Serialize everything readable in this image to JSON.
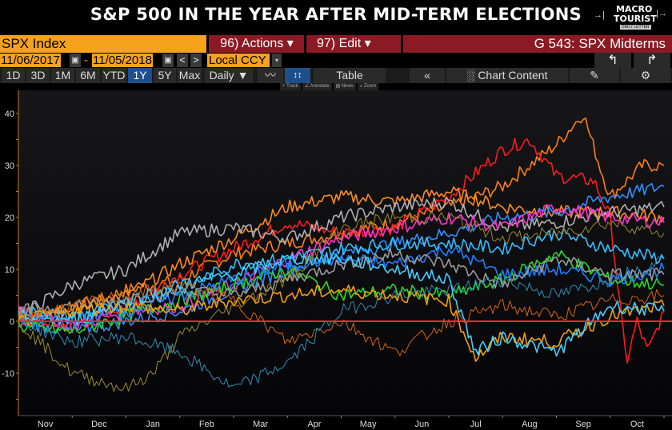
{
  "header": {
    "title": "S&P 500 IN THE YEAR AFTER MID-TERM ELECTIONS",
    "logo": {
      "line1": "MACRO",
      "line2": "TOURIST",
      "line3": "DAILY LETTER"
    }
  },
  "toolbar": {
    "security": "SPX Index",
    "actions_label": "96) Actions ▾",
    "edit_label": "97) Edit ▾",
    "graph_title": "G 543: SPX Midterms",
    "start_date": "11/06/2017",
    "end_date": "11/05/2018",
    "date_separator": "-",
    "currency": "Local CCY",
    "undo_icon": "↰",
    "redo_icon": "↱",
    "calendar_icon": "▣",
    "prev_icon": "<",
    "next_icon": ">",
    "dropdown_icon": "▾",
    "periods": [
      "1D",
      "3D",
      "1M",
      "6M",
      "YTD",
      "1Y",
      "5Y",
      "Max"
    ],
    "active_period": "1Y",
    "frequency": "Daily ▼",
    "line_chart_icon": "〰",
    "compare_icon": "↕↕",
    "table_label": "Table",
    "collapse_icon": "«",
    "chart_content_label": "Chart Content",
    "chart_content_icon": "░",
    "edit_icon": "✎",
    "settings_icon": "⚙",
    "sub_tools": [
      "+ Track",
      "∠ Annotate",
      "▤ News",
      "⌕ Zoom"
    ]
  },
  "chart_data": {
    "type": "line",
    "title": "S&P 500 IN THE YEAR AFTER MID-TERM ELECTIONS",
    "xlabel": "",
    "ylabel": "",
    "x_ticks": [
      "Nov",
      "Dec",
      "Jan",
      "Feb",
      "Mar",
      "Apr",
      "May",
      "Jun",
      "Jul",
      "Aug",
      "Sep",
      "Oct"
    ],
    "y_ticks": [
      -10,
      0,
      10,
      20,
      30,
      40
    ],
    "ylim": [
      -17,
      45
    ],
    "grid": false,
    "legend": "none",
    "reference_line": {
      "y": 0,
      "color": "#ff2a3a"
    },
    "x_unit": "months since election (0 = Nov)",
    "series": [
      {
        "name": "series-orange-peak",
        "color": "#ff7f0e",
        "points": [
          [
            0,
            0
          ],
          [
            1,
            2
          ],
          [
            2,
            6
          ],
          [
            3,
            8
          ],
          [
            4,
            13
          ],
          [
            5,
            15
          ],
          [
            6,
            17
          ],
          [
            7,
            19
          ],
          [
            8,
            22
          ],
          [
            9,
            26
          ],
          [
            10,
            34
          ],
          [
            10.5,
            40
          ],
          [
            10.8,
            30
          ],
          [
            11,
            24
          ],
          [
            11.6,
            30
          ],
          [
            12,
            30
          ]
        ]
      },
      {
        "name": "series-red",
        "color": "#ff1a1a",
        "points": [
          [
            0,
            0
          ],
          [
            1,
            -1
          ],
          [
            2,
            3
          ],
          [
            3,
            9
          ],
          [
            4,
            14
          ],
          [
            5,
            19
          ],
          [
            6,
            17
          ],
          [
            7,
            18
          ],
          [
            8,
            24
          ],
          [
            9,
            33
          ],
          [
            9.5,
            35
          ],
          [
            10,
            28
          ],
          [
            10.7,
            27
          ],
          [
            11,
            20
          ],
          [
            11.3,
            -8
          ],
          [
            11.5,
            0
          ],
          [
            11.7,
            -6
          ],
          [
            12,
            2
          ]
        ]
      },
      {
        "name": "series-orange-2",
        "color": "#ff8c1a",
        "points": [
          [
            0,
            1
          ],
          [
            1,
            3
          ],
          [
            2,
            5
          ],
          [
            3,
            11
          ],
          [
            4,
            16
          ],
          [
            5,
            22
          ],
          [
            6,
            24
          ],
          [
            7,
            23
          ],
          [
            8,
            25
          ],
          [
            9,
            22
          ],
          [
            10,
            21
          ],
          [
            11,
            21
          ],
          [
            12,
            20
          ]
        ]
      },
      {
        "name": "series-grey-1",
        "color": "#b0b0b0",
        "points": [
          [
            0,
            1
          ],
          [
            1,
            7
          ],
          [
            2,
            10
          ],
          [
            3,
            17
          ],
          [
            4,
            18
          ],
          [
            5,
            16
          ],
          [
            6,
            20
          ],
          [
            7,
            22
          ],
          [
            8,
            23
          ],
          [
            9,
            18
          ],
          [
            10,
            19
          ],
          [
            11,
            21
          ],
          [
            12,
            22
          ]
        ]
      },
      {
        "name": "series-blue-1",
        "color": "#2f8fff",
        "points": [
          [
            0,
            0
          ],
          [
            1,
            -2
          ],
          [
            2,
            0
          ],
          [
            3,
            2
          ],
          [
            4,
            6
          ],
          [
            5,
            10
          ],
          [
            6,
            13
          ],
          [
            7,
            15
          ],
          [
            8,
            17
          ],
          [
            9,
            20
          ],
          [
            10,
            21
          ],
          [
            11,
            24
          ],
          [
            12,
            26
          ]
        ]
      },
      {
        "name": "series-magenta",
        "color": "#ff33cc",
        "points": [
          [
            0,
            3
          ],
          [
            1,
            -1
          ],
          [
            2,
            2
          ],
          [
            3,
            3
          ],
          [
            4,
            7
          ],
          [
            5,
            12
          ],
          [
            6,
            16
          ],
          [
            7,
            18
          ],
          [
            8,
            20
          ],
          [
            9,
            18
          ],
          [
            10,
            22
          ],
          [
            11,
            20
          ],
          [
            12,
            19
          ]
        ]
      },
      {
        "name": "series-cyan-1",
        "color": "#33c0ff",
        "points": [
          [
            0,
            2
          ],
          [
            1,
            1
          ],
          [
            2,
            3
          ],
          [
            3,
            6
          ],
          [
            4,
            11
          ],
          [
            5,
            12
          ],
          [
            6,
            14
          ],
          [
            7,
            15
          ],
          [
            8,
            15
          ],
          [
            9,
            14
          ],
          [
            10,
            17
          ],
          [
            11,
            14
          ],
          [
            12,
            12
          ]
        ]
      },
      {
        "name": "series-green",
        "color": "#22dd22",
        "points": [
          [
            0,
            -1
          ],
          [
            1,
            -2
          ],
          [
            2,
            1
          ],
          [
            3,
            4
          ],
          [
            4,
            7
          ],
          [
            5,
            10
          ],
          [
            6,
            5
          ],
          [
            7,
            6
          ],
          [
            8,
            5
          ],
          [
            9,
            8
          ],
          [
            10,
            13
          ],
          [
            11,
            8
          ],
          [
            12,
            7
          ]
        ]
      },
      {
        "name": "series-blue-2",
        "color": "#1e7fff",
        "points": [
          [
            0,
            1
          ],
          [
            1,
            0
          ],
          [
            2,
            2
          ],
          [
            3,
            5
          ],
          [
            4,
            8
          ],
          [
            5,
            11
          ],
          [
            6,
            12
          ],
          [
            7,
            11
          ],
          [
            8,
            14
          ],
          [
            9,
            9
          ],
          [
            10,
            10
          ],
          [
            11,
            8
          ],
          [
            12,
            10
          ]
        ]
      },
      {
        "name": "series-grey-2",
        "color": "#9a9a9a",
        "points": [
          [
            0,
            2
          ],
          [
            1,
            3
          ],
          [
            2,
            4
          ],
          [
            3,
            6
          ],
          [
            4,
            5
          ],
          [
            5,
            8
          ],
          [
            6,
            11
          ],
          [
            7,
            13
          ],
          [
            8,
            11
          ],
          [
            9,
            7
          ],
          [
            10,
            12
          ],
          [
            11,
            9
          ],
          [
            12,
            9
          ]
        ]
      },
      {
        "name": "series-amber",
        "color": "#f5a000",
        "points": [
          [
            0,
            0
          ],
          [
            1,
            2
          ],
          [
            2,
            3
          ],
          [
            3,
            2
          ],
          [
            4,
            4
          ],
          [
            5,
            5
          ],
          [
            6,
            6
          ],
          [
            7,
            5
          ],
          [
            8,
            4
          ],
          [
            8.5,
            -7
          ],
          [
            9,
            -3
          ],
          [
            10,
            -4
          ],
          [
            11,
            1
          ],
          [
            12,
            3
          ]
        ]
      },
      {
        "name": "series-cyan-2",
        "color": "#3fd0ff",
        "points": [
          [
            0,
            1
          ],
          [
            1,
            0
          ],
          [
            2,
            4
          ],
          [
            3,
            7
          ],
          [
            4,
            9
          ],
          [
            5,
            12
          ],
          [
            6,
            12
          ],
          [
            7,
            10
          ],
          [
            8,
            8
          ],
          [
            8.5,
            -6
          ],
          [
            9,
            -3
          ],
          [
            10,
            -6
          ],
          [
            11,
            3
          ],
          [
            12,
            2
          ]
        ]
      },
      {
        "name": "series-dark-orange",
        "color": "#d8640a",
        "points": [
          [
            0,
            1
          ],
          [
            1,
            3
          ],
          [
            2,
            5
          ],
          [
            3,
            7
          ],
          [
            4,
            4
          ],
          [
            5,
            -4
          ],
          [
            6,
            0
          ],
          [
            7,
            -6
          ],
          [
            8,
            0
          ],
          [
            9,
            3
          ],
          [
            10,
            1
          ],
          [
            11,
            4
          ],
          [
            12,
            5
          ]
        ]
      },
      {
        "name": "series-teal",
        "color": "#2a8fb8",
        "points": [
          [
            0,
            0
          ],
          [
            1,
            -4
          ],
          [
            2,
            -3
          ],
          [
            3,
            -6
          ],
          [
            4,
            -13
          ],
          [
            5,
            -8
          ],
          [
            6,
            2
          ],
          [
            7,
            5
          ],
          [
            8,
            6
          ],
          [
            9,
            8
          ],
          [
            10,
            5
          ],
          [
            11,
            8
          ],
          [
            12,
            12
          ]
        ]
      },
      {
        "name": "series-olive",
        "color": "#9b8a2a",
        "points": [
          [
            0,
            0
          ],
          [
            1,
            -10
          ],
          [
            2,
            -13
          ],
          [
            2.5,
            -10
          ],
          [
            3,
            -3
          ],
          [
            4,
            3
          ],
          [
            5,
            8
          ],
          [
            6,
            18
          ],
          [
            7,
            20
          ],
          [
            8,
            20
          ],
          [
            9,
            16
          ],
          [
            10,
            17
          ],
          [
            11,
            19
          ],
          [
            12,
            17
          ]
        ]
      }
    ]
  }
}
